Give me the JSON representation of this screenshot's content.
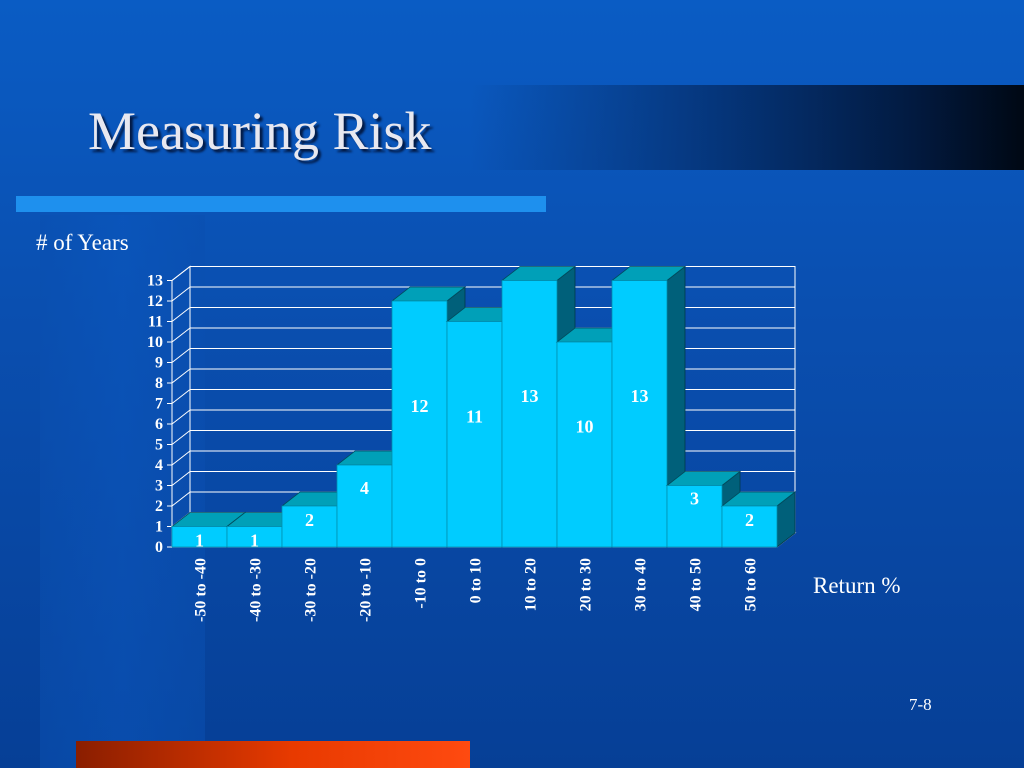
{
  "slide": {
    "title": "Measuring Risk",
    "number": "7-8"
  },
  "colors": {
    "bar_front": "#00ccff",
    "bar_top": "#00a0b8",
    "bar_side": "#00607a",
    "grid": "#ffffff"
  },
  "chart_data": {
    "type": "bar",
    "ylabel": "# of Years",
    "xlabel": "Return %",
    "categories": [
      "-50 to -40",
      "-40 to -30",
      "-30 to -20",
      "-20 to -10",
      "-10 to 0",
      "0 to 10",
      "10 to 20",
      "20 to 30",
      "30 to 40",
      "40 to 50",
      "50 to 60"
    ],
    "values": [
      1,
      1,
      2,
      4,
      12,
      11,
      13,
      10,
      13,
      3,
      2
    ],
    "ylim": [
      0,
      13
    ],
    "yticks": [
      0,
      1,
      2,
      3,
      4,
      5,
      6,
      7,
      8,
      9,
      10,
      11,
      12,
      13
    ],
    "data_labels": true,
    "grid": true,
    "style": "3d-bar"
  }
}
